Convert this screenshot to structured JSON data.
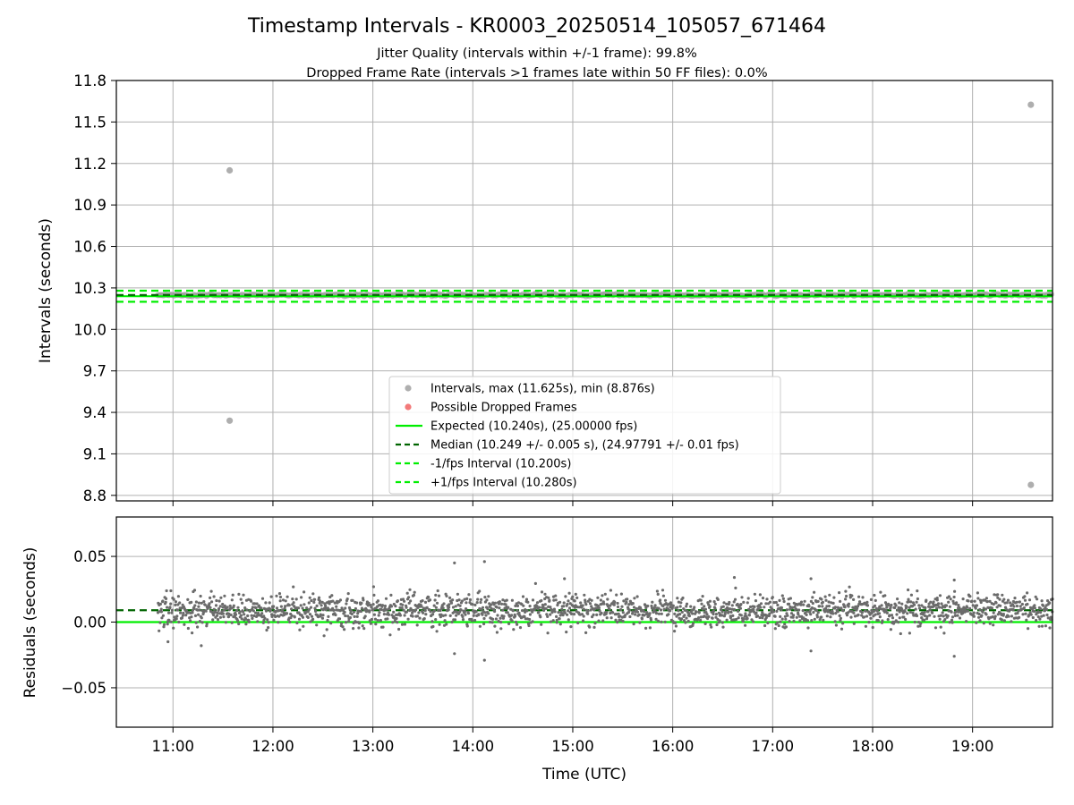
{
  "figure": {
    "title": "Timestamp Intervals - KR0003_20250514_105057_671464",
    "subtitle_1": "Jitter Quality (intervals within +/-1 frame): 99.8%",
    "subtitle_2": "Dropped Frame Rate (intervals >1 frames late within 50 FF files): 0.0%"
  },
  "legend": {
    "items": [
      {
        "label": "Intervals, max (11.625s), min (8.876s)",
        "marker": "dot",
        "color": "#a6a6a6"
      },
      {
        "label": "Possible Dropped Frames",
        "marker": "dot",
        "color": "#f26b6b"
      },
      {
        "label": "Expected (10.240s), (25.00000 fps)",
        "marker": "line",
        "color": "#00ee00"
      },
      {
        "label": "Median (10.249 +/- 0.005 s), (24.97791 +/- 0.01 fps)",
        "marker": "dash",
        "color": "#006400"
      },
      {
        "label": "-1/fps Interval (10.200s)",
        "marker": "dash",
        "color": "#00ee00"
      },
      {
        "label": "+1/fps Interval (10.280s)",
        "marker": "dash",
        "color": "#00ee00"
      }
    ]
  },
  "chart_data": [
    {
      "type": "scatter",
      "ylabel": "Intervals (seconds)",
      "xlim": [
        "10:26",
        "19:48"
      ],
      "ylim": [
        8.76,
        11.8
      ],
      "yticks": [
        "11.8",
        "11.5",
        "11.2",
        "10.9",
        "10.6",
        "10.3",
        "10.0",
        "9.7",
        "9.4",
        "9.1",
        "8.8"
      ],
      "grid": true,
      "legend_position": "lower center",
      "series": [
        {
          "name": "Intervals, max (11.625s), min (8.876s)",
          "time_range": [
            "10:51",
            "19:48"
          ],
          "typical_value": 10.249,
          "spread": 0.005,
          "outliers": [
            {
              "x": "11:34",
              "y": 11.15
            },
            {
              "x": "11:34",
              "y": 9.34
            },
            {
              "x": "19:35",
              "y": 11.625
            },
            {
              "x": "19:35",
              "y": 8.876
            }
          ]
        }
      ],
      "reference_lines": [
        {
          "name": "Expected (10.240s), (25.00000 fps)",
          "y": 10.24,
          "color": "#00ee00",
          "style": "solid"
        },
        {
          "name": "Median (10.249 +/- 0.005 s), (24.97791 +/- 0.01 fps)",
          "y": 10.249,
          "color": "#006400",
          "style": "dashed"
        },
        {
          "name": "-1/fps Interval (10.200s)",
          "y": 10.2,
          "color": "#00ee00",
          "style": "dashed"
        },
        {
          "name": "+1/fps Interval (10.280s)",
          "y": 10.28,
          "color": "#00ee00",
          "style": "dashed"
        }
      ]
    },
    {
      "type": "scatter",
      "xlabel": "Time (UTC)",
      "ylabel": "Residuals (seconds)",
      "xlim": [
        "10:26",
        "19:48"
      ],
      "ylim": [
        -0.08,
        0.08
      ],
      "xticks": [
        "11:00",
        "12:00",
        "13:00",
        "14:00",
        "15:00",
        "16:00",
        "17:00",
        "18:00",
        "19:00"
      ],
      "yticks": [
        "0.05",
        "0.00",
        "−0.05"
      ],
      "grid": true,
      "series": [
        {
          "name": "residuals",
          "time_range": [
            "10:51",
            "19:48"
          ],
          "typical_value": 0.009,
          "spread": 0.006,
          "notable_points": [
            {
              "x": "13:49",
              "y": 0.045
            },
            {
              "x": "14:07",
              "y": 0.046
            },
            {
              "x": "14:07",
              "y": -0.029
            },
            {
              "x": "13:49",
              "y": -0.024
            },
            {
              "x": "16:37",
              "y": 0.034
            },
            {
              "x": "14:55",
              "y": 0.033
            },
            {
              "x": "17:23",
              "y": 0.033
            },
            {
              "x": "18:49",
              "y": 0.032
            },
            {
              "x": "18:49",
              "y": -0.026
            },
            {
              "x": "17:23",
              "y": -0.022
            },
            {
              "x": "10:57",
              "y": -0.015
            },
            {
              "x": "11:17",
              "y": -0.018
            }
          ]
        }
      ],
      "reference_lines": [
        {
          "name": "expected",
          "y": 0.0,
          "color": "#00ee00",
          "style": "solid"
        },
        {
          "name": "median",
          "y": 0.009,
          "color": "#006400",
          "style": "dashed"
        }
      ]
    }
  ]
}
